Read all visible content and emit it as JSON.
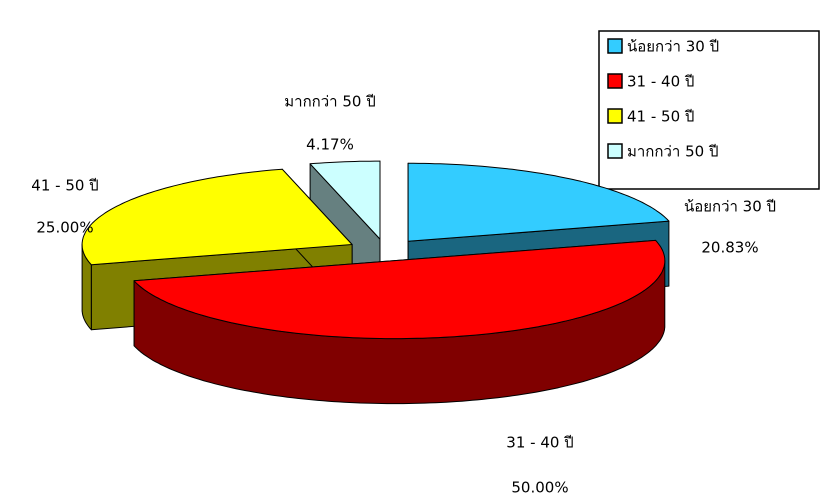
{
  "chart_data": {
    "type": "pie3d",
    "categories": [
      "น้อยกว่า 30 ปี",
      "31 - 40 ปี",
      "41 - 50 ปี",
      "มากกว่า 50 ปี"
    ],
    "values": [
      20.83,
      50,
      25,
      4.17
    ],
    "value_labels": [
      "20.83%",
      "50.00%",
      "25.00%",
      "4.17%"
    ],
    "colors": [
      "#33ccff",
      "#ff0000",
      "#ffff00",
      "#ccffff"
    ],
    "legend": "top-right"
  }
}
